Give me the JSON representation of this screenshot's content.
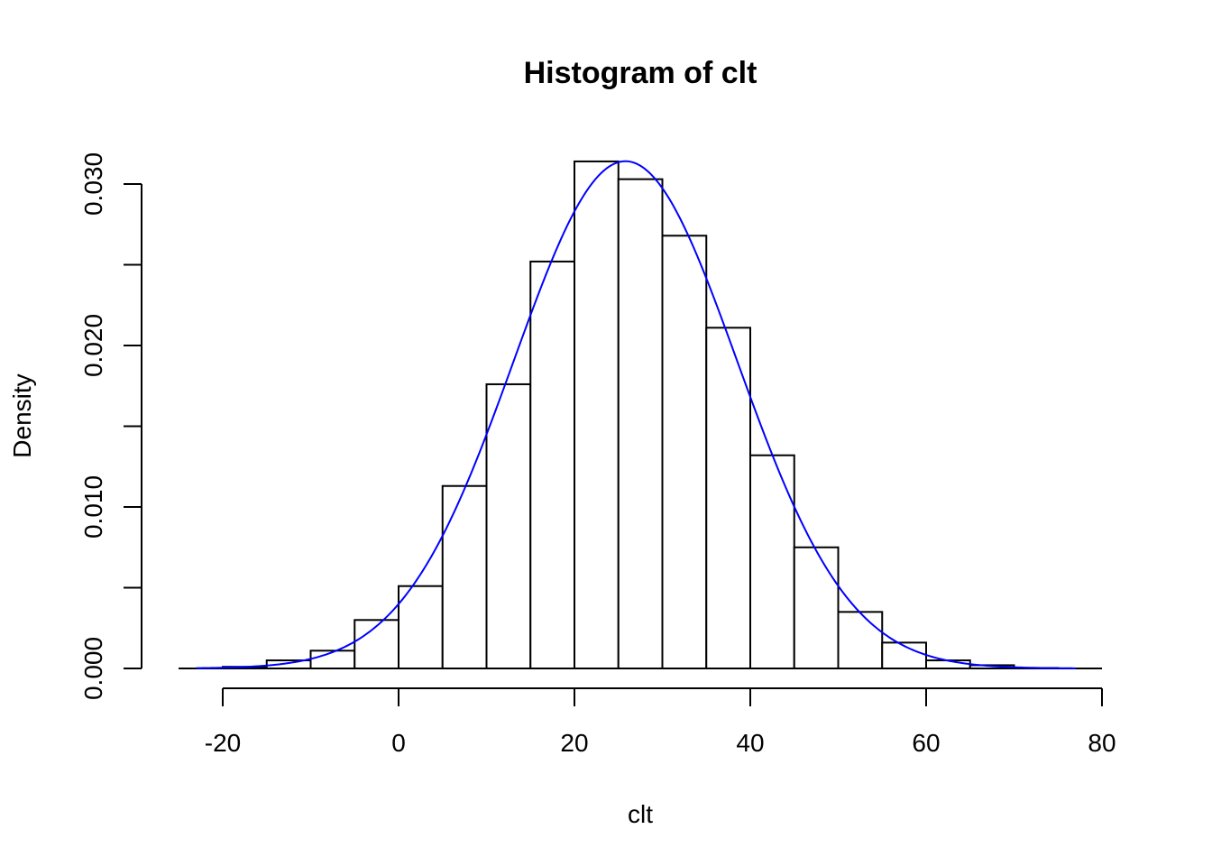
{
  "chart_data": {
    "type": "bar",
    "title": "Histogram of clt",
    "xlabel": "clt",
    "ylabel": "Density",
    "xlim": [
      -20,
      80
    ],
    "ylim": [
      0,
      0.03
    ],
    "bar_color": "#ffffff",
    "bar_border_color": "#000000",
    "x_ticks": [
      -20,
      0,
      20,
      40,
      60,
      80
    ],
    "x_tick_labels": [
      "-20",
      "0",
      "20",
      "40",
      "60",
      "80"
    ],
    "y_ticks": [
      0,
      0.005,
      0.01,
      0.015,
      0.02,
      0.025,
      0.03
    ],
    "y_tick_labels": [
      "0.000",
      "",
      "0.010",
      "",
      "0.020",
      "",
      "0.030"
    ],
    "bins": [
      {
        "start": -20,
        "end": -15,
        "density": 0.0001
      },
      {
        "start": -15,
        "end": -10,
        "density": 0.0005
      },
      {
        "start": -10,
        "end": -5,
        "density": 0.0011
      },
      {
        "start": -5,
        "end": 0,
        "density": 0.003
      },
      {
        "start": 0,
        "end": 5,
        "density": 0.0051
      },
      {
        "start": 5,
        "end": 10,
        "density": 0.0113
      },
      {
        "start": 10,
        "end": 15,
        "density": 0.0176
      },
      {
        "start": 15,
        "end": 20,
        "density": 0.0252
      },
      {
        "start": 20,
        "end": 25,
        "density": 0.0314
      },
      {
        "start": 25,
        "end": 30,
        "density": 0.0303
      },
      {
        "start": 30,
        "end": 35,
        "density": 0.0268
      },
      {
        "start": 35,
        "end": 40,
        "density": 0.0211
      },
      {
        "start": 40,
        "end": 45,
        "density": 0.0132
      },
      {
        "start": 45,
        "end": 50,
        "density": 0.0075
      },
      {
        "start": 50,
        "end": 55,
        "density": 0.0035
      },
      {
        "start": 55,
        "end": 60,
        "density": 0.0016
      },
      {
        "start": 60,
        "end": 65,
        "density": 0.0005
      },
      {
        "start": 65,
        "end": 70,
        "density": 0.0002
      },
      {
        "start": 70,
        "end": 75,
        "density": 3e-05
      }
    ],
    "curve": {
      "type": "normal-density",
      "color": "#0000ff",
      "mean": 25.8,
      "sd": 12.7,
      "x_from": -23,
      "x_to": 77
    },
    "grid": false
  }
}
